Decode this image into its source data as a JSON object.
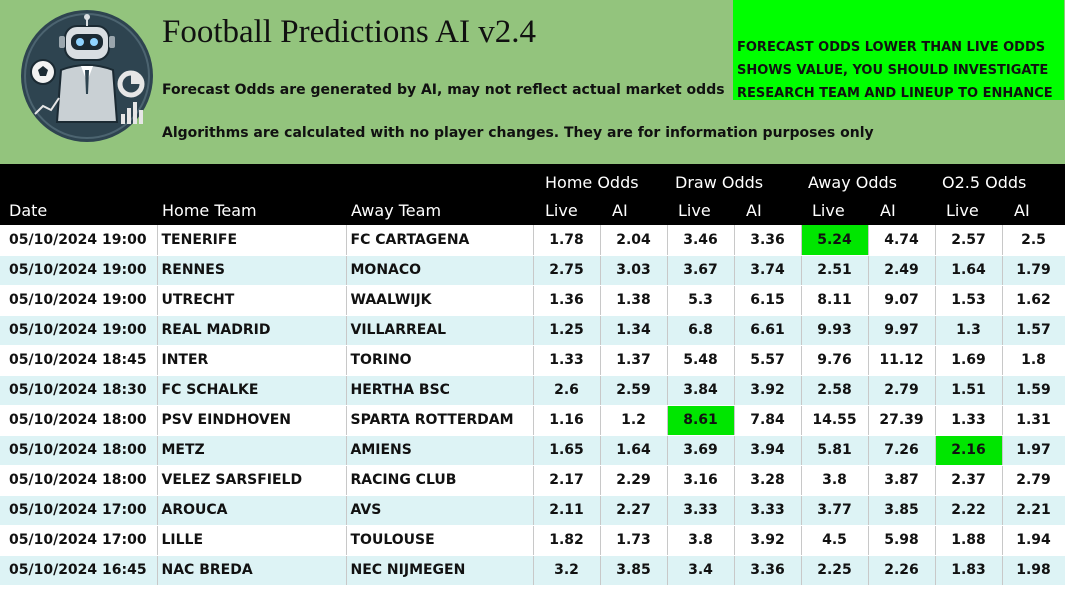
{
  "header": {
    "title": "Football Predictions AI v2.4",
    "subtitle1": "Forecast Odds are generated by AI, may not reflect actual market odds",
    "subtitle2": "Algorithms are calculated with no player changes. They are for information purposes only",
    "notice_lines": [
      "FORECAST ODDS LOWER THAN LIVE ODDS",
      "SHOWS VALUE, YOU SHOULD INVESTIGATE",
      "RESEARCH TEAM AND LINEUP TO ENHANCE"
    ],
    "logo_icon": "robot-football-analyst-icon"
  },
  "colors": {
    "header_bg": "#93c47d",
    "notice_bg": "#00ff00",
    "highlight": "#00e600",
    "row_alt": "#ddf3f5",
    "table_header_bg": "#000000"
  },
  "table": {
    "columns": {
      "date": "Date",
      "home_team": "Home Team",
      "away_team": "Away Team",
      "home_odds": "Home Odds",
      "draw_odds": "Draw Odds",
      "away_odds": "Away Odds",
      "o25_odds": "O2.5 Odds",
      "live": "Live",
      "ai": "AI"
    },
    "rows": [
      {
        "date": "05/10/2024 19:00",
        "home": "TENERIFE",
        "away": "FC CARTAGENA",
        "home_live": "1.78",
        "home_ai": "2.04",
        "draw_live": "3.46",
        "draw_ai": "3.36",
        "away_live": "5.24",
        "away_ai": "4.74",
        "o25_live": "2.57",
        "o25_ai": "2.5",
        "highlight": [
          "away_live"
        ]
      },
      {
        "date": "05/10/2024 19:00",
        "home": "RENNES",
        "away": "MONACO",
        "home_live": "2.75",
        "home_ai": "3.03",
        "draw_live": "3.67",
        "draw_ai": "3.74",
        "away_live": "2.51",
        "away_ai": "2.49",
        "o25_live": "1.64",
        "o25_ai": "1.79",
        "highlight": []
      },
      {
        "date": "05/10/2024 19:00",
        "home": "UTRECHT",
        "away": "WAALWIJK",
        "home_live": "1.36",
        "home_ai": "1.38",
        "draw_live": "5.3",
        "draw_ai": "6.15",
        "away_live": "8.11",
        "away_ai": "9.07",
        "o25_live": "1.53",
        "o25_ai": "1.62",
        "highlight": []
      },
      {
        "date": "05/10/2024 19:00",
        "home": "REAL MADRID",
        "away": "VILLARREAL",
        "home_live": "1.25",
        "home_ai": "1.34",
        "draw_live": "6.8",
        "draw_ai": "6.61",
        "away_live": "9.93",
        "away_ai": "9.97",
        "o25_live": "1.3",
        "o25_ai": "1.57",
        "highlight": []
      },
      {
        "date": "05/10/2024 18:45",
        "home": "INTER",
        "away": "TORINO",
        "home_live": "1.33",
        "home_ai": "1.37",
        "draw_live": "5.48",
        "draw_ai": "5.57",
        "away_live": "9.76",
        "away_ai": "11.12",
        "o25_live": "1.69",
        "o25_ai": "1.8",
        "highlight": []
      },
      {
        "date": "05/10/2024 18:30",
        "home": "FC SCHALKE",
        "away": "HERTHA BSC",
        "home_live": "2.6",
        "home_ai": "2.59",
        "draw_live": "3.84",
        "draw_ai": "3.92",
        "away_live": "2.58",
        "away_ai": "2.79",
        "o25_live": "1.51",
        "o25_ai": "1.59",
        "highlight": []
      },
      {
        "date": "05/10/2024 18:00",
        "home": "PSV EINDHOVEN",
        "away": "SPARTA ROTTERDAM",
        "home_live": "1.16",
        "home_ai": "1.2",
        "draw_live": "8.61",
        "draw_ai": "7.84",
        "away_live": "14.55",
        "away_ai": "27.39",
        "o25_live": "1.33",
        "o25_ai": "1.31",
        "highlight": [
          "draw_live"
        ]
      },
      {
        "date": "05/10/2024 18:00",
        "home": "METZ",
        "away": "AMIENS",
        "home_live": "1.65",
        "home_ai": "1.64",
        "draw_live": "3.69",
        "draw_ai": "3.94",
        "away_live": "5.81",
        "away_ai": "7.26",
        "o25_live": "2.16",
        "o25_ai": "1.97",
        "highlight": [
          "o25_live"
        ]
      },
      {
        "date": "05/10/2024 18:00",
        "home": "VELEZ SARSFIELD",
        "away": "RACING CLUB",
        "home_live": "2.17",
        "home_ai": "2.29",
        "draw_live": "3.16",
        "draw_ai": "3.28",
        "away_live": "3.8",
        "away_ai": "3.87",
        "o25_live": "2.37",
        "o25_ai": "2.79",
        "highlight": []
      },
      {
        "date": "05/10/2024 17:00",
        "home": "AROUCA",
        "away": "AVS",
        "home_live": "2.11",
        "home_ai": "2.27",
        "draw_live": "3.33",
        "draw_ai": "3.33",
        "away_live": "3.77",
        "away_ai": "3.85",
        "o25_live": "2.22",
        "o25_ai": "2.21",
        "highlight": []
      },
      {
        "date": "05/10/2024 17:00",
        "home": "LILLE",
        "away": "TOULOUSE",
        "home_live": "1.82",
        "home_ai": "1.73",
        "draw_live": "3.8",
        "draw_ai": "3.92",
        "away_live": "4.5",
        "away_ai": "5.98",
        "o25_live": "1.88",
        "o25_ai": "1.94",
        "highlight": []
      },
      {
        "date": "05/10/2024 16:45",
        "home": "NAC BREDA",
        "away": "NEC NIJMEGEN",
        "home_live": "3.2",
        "home_ai": "3.85",
        "draw_live": "3.4",
        "draw_ai": "3.36",
        "away_live": "2.25",
        "away_ai": "2.26",
        "o25_live": "1.83",
        "o25_ai": "1.98",
        "highlight": []
      }
    ]
  }
}
